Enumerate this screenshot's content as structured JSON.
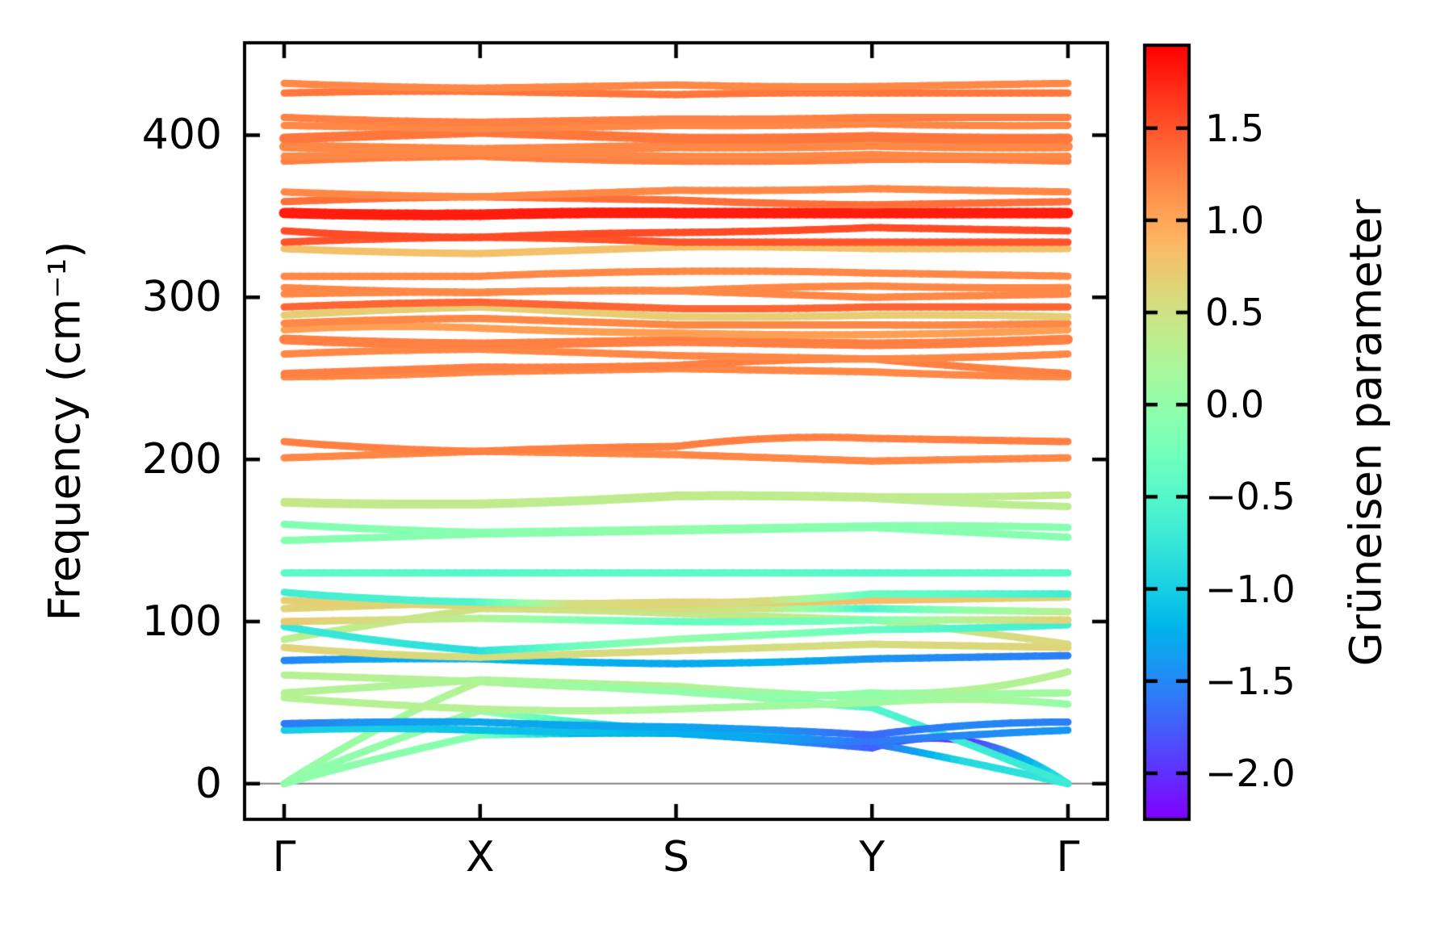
{
  "chart_data": {
    "type": "line",
    "title": "",
    "description": "Phonon band structure along Gamma-X-S-Y-Gamma, bands colored by Gruneisen parameter",
    "ylabel": "Frequency (cm⁻¹)",
    "ylim": [
      -22,
      457
    ],
    "y_ticks": [
      0,
      100,
      200,
      300,
      400
    ],
    "y_tick_labels": [
      "0",
      "100",
      "200",
      "300",
      "400"
    ],
    "x_tick_labels": [
      "Γ",
      "X",
      "S",
      "Y",
      "Γ"
    ],
    "x_tick_positions": [
      0,
      1,
      2,
      3,
      4
    ],
    "grid": false,
    "zero_line_color": "#808080",
    "colorbar": {
      "label": "Grüneisen parameter",
      "vmin": -2.25,
      "vmax": 1.95,
      "colormap": "rainbow",
      "ticks": [
        1.5,
        1.0,
        0.5,
        0.0,
        -0.5,
        -1.0,
        -1.5,
        -2.0
      ],
      "tick_labels": [
        "1.5",
        "1.0",
        "0.5",
        "0.0",
        "−0.5",
        "−1.0",
        "−1.5",
        "−2.0"
      ]
    },
    "band_path_x": [
      0,
      0.5,
      1,
      1.5,
      2,
      2.5,
      3,
      3.5,
      4
    ],
    "bands": [
      {
        "f": [
          0,
          16,
          30,
          31,
          31,
          27,
          22,
          26,
          0
        ],
        "g": [
          0.0,
          -0.05,
          -0.1,
          -1.2,
          -1.3,
          -1.4,
          -1.7,
          -2.05,
          -0.8
        ]
      },
      {
        "f": [
          0,
          24,
          45,
          38,
          33,
          29,
          25,
          13,
          0
        ],
        "g": [
          -0.05,
          0.0,
          0.1,
          -0.6,
          -1.4,
          -1.0,
          -1.8,
          -0.9,
          -0.75
        ]
      },
      {
        "f": [
          0,
          35,
          63,
          60,
          59,
          52,
          47,
          24,
          0
        ],
        "g": [
          0.0,
          0.1,
          0.3,
          0.5,
          0.55,
          0.0,
          -0.5,
          -0.7,
          -0.7
        ]
      },
      {
        "f": [
          33,
          34,
          33,
          32,
          32,
          28,
          26,
          30,
          33
        ],
        "g": [
          -1.0,
          -1.0,
          -1.1,
          -1.1,
          -1.2,
          -1.3,
          -1.6,
          -1.5,
          -1.4
        ]
      },
      {
        "f": [
          37,
          38,
          38,
          36,
          35,
          33,
          30,
          36,
          38
        ],
        "g": [
          -1.6,
          -1.4,
          -1.3,
          -1.3,
          -1.3,
          -1.4,
          -1.7,
          -1.5,
          -1.55
        ]
      },
      {
        "f": [
          53,
          49,
          46,
          45,
          46,
          48,
          50,
          52,
          49
        ],
        "g": [
          0.3,
          0.3,
          0.3,
          0.25,
          0.2,
          0.15,
          0.1,
          0.25,
          0.05
        ]
      },
      {
        "f": [
          56,
          60,
          64,
          62,
          60,
          56,
          53,
          55,
          56
        ],
        "g": [
          0.3,
          0.25,
          0.2,
          0.25,
          0.3,
          0.15,
          0.05,
          0.1,
          0.15
        ]
      },
      {
        "f": [
          67,
          65,
          63,
          60,
          57,
          54,
          56,
          58,
          69
        ],
        "g": [
          0.3,
          0.3,
          0.25,
          0.1,
          0.0,
          0.0,
          0.0,
          0.25,
          0.3
        ]
      },
      {
        "f": [
          76,
          77,
          77,
          75,
          74,
          75,
          77,
          78,
          79
        ],
        "g": [
          -1.55,
          -1.3,
          -1.2,
          -1.2,
          -1.3,
          -1.2,
          -1.4,
          -1.5,
          -1.55
        ]
      },
      {
        "f": [
          84,
          80,
          78,
          80,
          82,
          84,
          86,
          85,
          84
        ],
        "g": [
          0.65,
          0.6,
          0.55,
          0.55,
          0.6,
          0.55,
          0.55,
          0.6,
          0.65
        ]
      },
      {
        "f": [
          89,
          99,
          108,
          107,
          105,
          103,
          101,
          94,
          86
        ],
        "g": [
          0.3,
          0.4,
          0.5,
          0.5,
          0.45,
          0.4,
          0.3,
          0.5,
          0.6
        ]
      },
      {
        "f": [
          97,
          88,
          82,
          85,
          89,
          92,
          95,
          96,
          98
        ],
        "g": [
          -0.75,
          -0.75,
          -0.85,
          -0.3,
          0.0,
          -0.1,
          -0.35,
          -0.55,
          -0.65
        ]
      },
      {
        "f": [
          100,
          101,
          102,
          101,
          100,
          100,
          101,
          101,
          101
        ],
        "g": [
          0.75,
          0.55,
          0.3,
          -0.1,
          -0.35,
          -0.3,
          -0.2,
          0.3,
          0.65
        ]
      },
      {
        "f": [
          108,
          110,
          112,
          110,
          108,
          108,
          108,
          107,
          106
        ],
        "g": [
          0.65,
          0.65,
          0.6,
          0.55,
          0.55,
          0.45,
          -0.6,
          0.0,
          0.3
        ]
      },
      {
        "f": [
          113,
          111,
          110,
          111,
          112,
          112,
          113,
          114,
          115
        ],
        "g": [
          0.7,
          0.65,
          0.65,
          0.65,
          0.65,
          0.7,
          0.85,
          0.75,
          0.65
        ]
      },
      {
        "f": [
          118,
          114,
          112,
          111,
          111,
          113,
          117,
          117,
          117
        ],
        "g": [
          -0.65,
          -0.6,
          -0.55,
          0.55,
          0.65,
          0.55,
          -0.35,
          -0.45,
          -0.65
        ]
      },
      {
        "f": [
          130,
          130,
          130,
          130,
          130,
          130,
          130,
          130,
          130
        ],
        "g": [
          -0.45,
          -0.45,
          -0.5,
          -0.45,
          -0.45,
          -0.45,
          -0.5,
          -0.45,
          -0.45
        ]
      },
      {
        "f": [
          150,
          152,
          154,
          155,
          156,
          157,
          158,
          155,
          152
        ],
        "g": [
          -0.1,
          -0.1,
          -0.05,
          -0.1,
          -0.05,
          -0.1,
          -0.1,
          -0.1,
          -0.1
        ]
      },
      {
        "f": [
          160,
          157,
          155,
          156,
          157,
          158,
          159,
          159,
          158
        ],
        "g": [
          -0.15,
          -0.1,
          -0.1,
          -0.05,
          0.0,
          -0.05,
          -0.1,
          -0.05,
          -0.1
        ]
      },
      {
        "f": [
          173,
          172,
          172,
          174,
          177,
          177,
          176,
          173,
          171
        ],
        "g": [
          0.4,
          0.4,
          0.35,
          0.35,
          0.35,
          0.4,
          0.35,
          0.35,
          0.35
        ]
      },
      {
        "f": [
          174,
          173,
          173,
          175,
          178,
          178,
          177,
          177,
          178
        ],
        "g": [
          0.45,
          0.4,
          0.4,
          0.35,
          0.4,
          0.35,
          0.4,
          0.35,
          0.4
        ]
      },
      {
        "f": [
          201,
          203,
          205,
          204,
          203,
          201,
          199,
          200,
          201
        ],
        "g": 1.2
      },
      {
        "f": [
          211,
          207,
          205,
          207,
          208,
          213,
          213,
          212,
          211
        ],
        "g": 1.25
      },
      {
        "f": [
          251,
          252,
          254,
          255,
          256,
          255,
          254,
          252,
          251
        ],
        "g": 1.2
      },
      {
        "f": [
          253,
          255,
          257,
          257,
          258,
          261,
          262,
          257,
          253
        ],
        "g": 1.25
      },
      {
        "f": [
          265,
          267,
          268,
          266,
          264,
          263,
          262,
          263,
          265
        ],
        "g": 1.2
      },
      {
        "f": [
          274,
          272,
          271,
          272,
          273,
          272,
          271,
          272,
          274
        ],
        "g": 1.25,
        "w": 12
      },
      {
        "f": [
          280,
          282,
          281,
          279,
          278,
          277,
          277,
          278,
          280
        ],
        "g": 1.05
      },
      {
        "f": [
          284,
          286,
          287,
          285,
          283,
          283,
          283,
          283,
          284
        ],
        "g": 1.2
      },
      {
        "f": [
          289,
          292,
          294,
          291,
          288,
          288,
          289,
          289,
          288
        ],
        "g": 0.7
      },
      {
        "f": [
          294,
          296,
          297,
          295,
          293,
          293,
          294,
          294,
          294
        ],
        "g": 1.4
      },
      {
        "f": [
          302,
          303,
          303,
          304,
          304,
          302,
          300,
          301,
          302
        ],
        "g": 1.2
      },
      {
        "f": [
          306,
          304,
          303,
          304,
          304,
          306,
          307,
          306,
          306
        ],
        "g": 1.2
      },
      {
        "f": [
          313,
          313,
          313,
          315,
          316,
          316,
          315,
          314,
          313
        ],
        "g": 1.2
      },
      {
        "f": [
          330,
          328,
          327,
          329,
          331,
          331,
          330,
          330,
          330
        ],
        "g": 0.8
      },
      {
        "f": [
          334,
          336,
          337,
          336,
          334,
          334,
          334,
          334,
          334
        ],
        "g": 1.5
      },
      {
        "f": [
          341,
          338,
          337,
          339,
          340,
          341,
          343,
          342,
          341
        ],
        "g": 1.55
      },
      {
        "f": [
          352,
          351,
          351,
          352,
          352,
          352,
          352,
          352,
          352
        ],
        "g": 1.8,
        "w": 13
      },
      {
        "f": [
          359,
          361,
          362,
          361,
          360,
          358,
          357,
          358,
          359
        ],
        "g": 1.35
      },
      {
        "f": [
          365,
          363,
          362,
          364,
          366,
          366,
          367,
          366,
          365
        ],
        "g": 1.2
      },
      {
        "f": [
          384,
          386,
          387,
          385,
          384,
          384,
          385,
          385,
          384
        ],
        "g": 1.25
      },
      {
        "f": [
          387,
          388,
          389,
          388,
          387,
          387,
          388,
          387,
          387
        ],
        "g": 1.2
      },
      {
        "f": [
          393,
          392,
          391,
          392,
          393,
          393,
          394,
          393,
          393
        ],
        "g": 1.2,
        "w": 12
      },
      {
        "f": [
          398,
          400,
          402,
          400,
          398,
          398,
          399,
          398,
          398
        ],
        "g": 1.3,
        "w": 12
      },
      {
        "f": [
          406,
          405,
          404,
          405,
          406,
          406,
          407,
          406,
          406
        ],
        "g": 1.2
      },
      {
        "f": [
          411,
          409,
          408,
          409,
          410,
          410,
          411,
          411,
          411
        ],
        "g": 1.25
      },
      {
        "f": [
          426,
          427,
          427,
          426,
          425,
          426,
          426,
          426,
          426
        ],
        "g": 1.3
      },
      {
        "f": [
          432,
          430,
          429,
          430,
          431,
          430,
          430,
          431,
          432
        ],
        "g": 1.2
      }
    ]
  }
}
